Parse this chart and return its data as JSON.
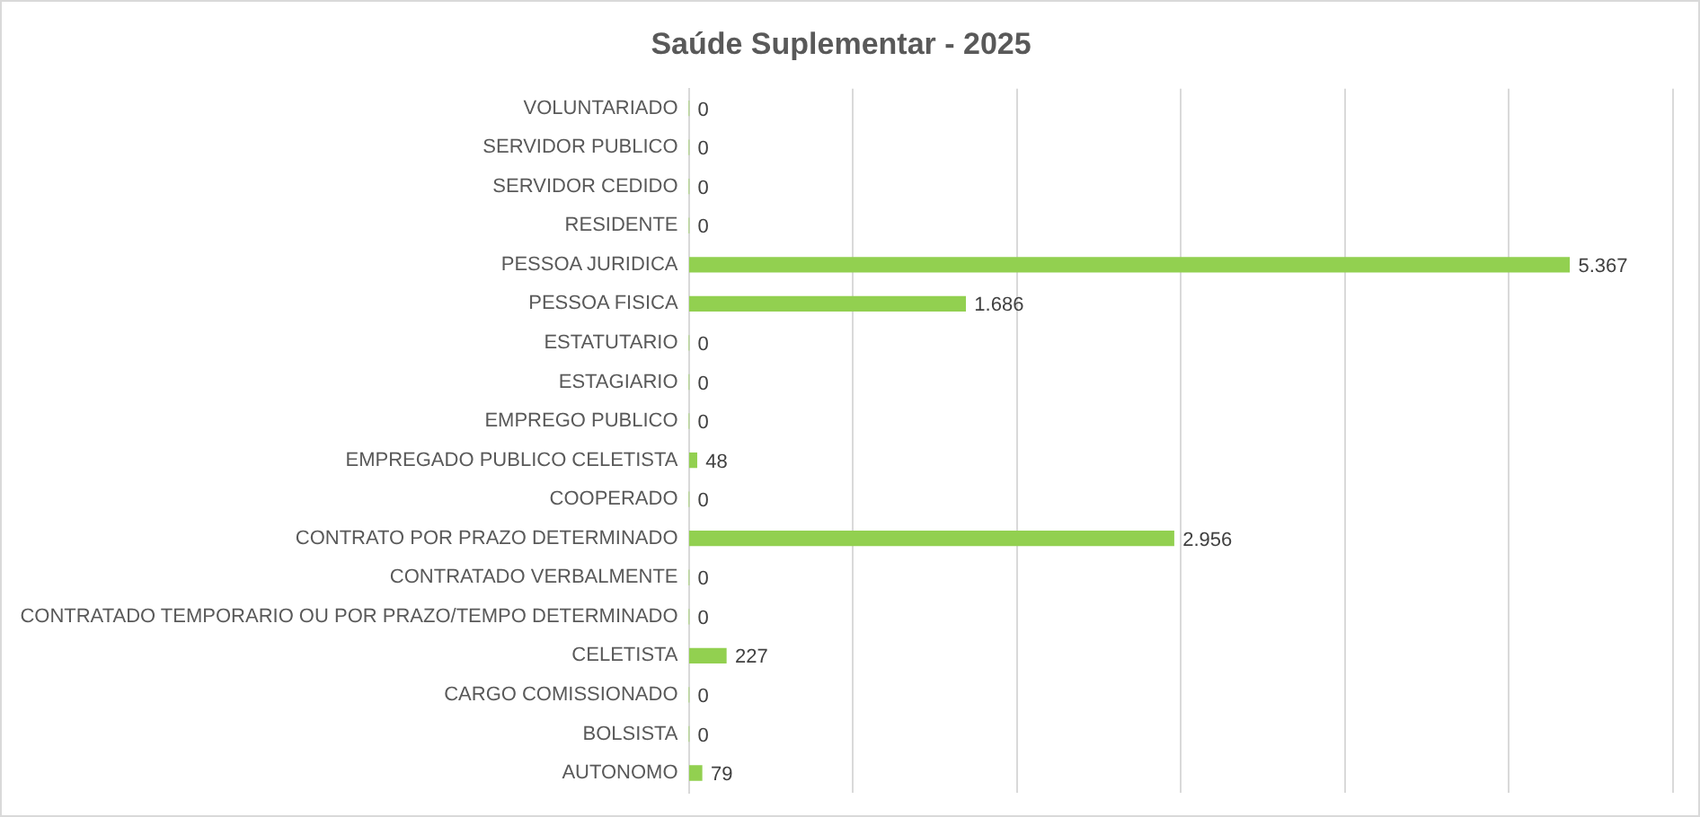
{
  "chart_data": {
    "type": "bar",
    "orientation": "horizontal",
    "title": "Saúde Suplementar - 2025",
    "categories": [
      "VOLUNTARIADO",
      "SERVIDOR PUBLICO",
      "SERVIDOR CEDIDO",
      "RESIDENTE",
      "PESSOA JURIDICA",
      "PESSOA FISICA",
      "ESTATUTARIO",
      "ESTAGIARIO",
      "EMPREGO PUBLICO",
      "EMPREGADO PUBLICO CELETISTA",
      "COOPERADO",
      "CONTRATO POR PRAZO DETERMINADO",
      "CONTRATADO VERBALMENTE",
      "CONTRATADO TEMPORARIO OU POR PRAZO/TEMPO DETERMINADO",
      "CELETISTA",
      "CARGO COMISSIONADO",
      "BOLSISTA",
      "AUTONOMO"
    ],
    "values": [
      0,
      0,
      0,
      0,
      5367,
      1686,
      0,
      0,
      0,
      48,
      0,
      2956,
      0,
      0,
      227,
      0,
      0,
      79
    ],
    "value_labels": [
      "0",
      "0",
      "0",
      "0",
      "5.367",
      "1.686",
      "0",
      "0",
      "0",
      "48",
      "0",
      "2.956",
      "0",
      "0",
      "227",
      "0",
      "0",
      "79"
    ],
    "color": "#92d050",
    "xlim": [
      0,
      6000
    ],
    "xticks": [
      {
        "value": 0,
        "label": null
      },
      {
        "value": 1000,
        "label": null
      },
      {
        "value": 2000,
        "label": null
      },
      {
        "value": 3000,
        "label": null
      },
      {
        "value": 4000,
        "label": null
      },
      {
        "value": 5000,
        "label": null
      },
      {
        "value": 6000,
        "label": null
      }
    ],
    "grid": "x",
    "tick_labels": "y",
    "legend": false
  }
}
